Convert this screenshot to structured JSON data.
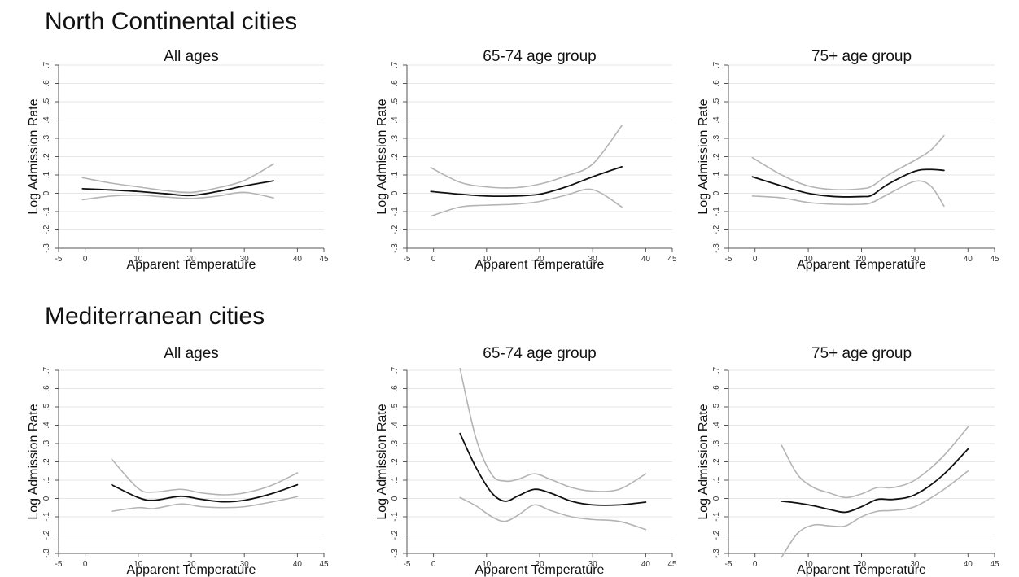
{
  "groups": [
    {
      "title": "North Continental cities"
    },
    {
      "title": "Mediterranean cities"
    }
  ],
  "styles": {
    "estimate_color": "#111111",
    "ci_color": "#b4b4b4",
    "grid_color": "#e6e6e6",
    "axis_color": "#555555"
  },
  "chart_data": [
    {
      "type": "line",
      "group": "North Continental cities",
      "title": "All ages",
      "xlabel": "Apparent Temperature",
      "ylabel": "Log Admission Rate",
      "xlim": [
        -5,
        45
      ],
      "ylim": [
        -0.3,
        0.7
      ],
      "xticks": [
        -5,
        0,
        10,
        20,
        30,
        40,
        45
      ],
      "yticks": [
        -0.3,
        -0.2,
        -0.1,
        0,
        0.1,
        0.2,
        0.3,
        0.4,
        0.5,
        0.6,
        0.7
      ],
      "ytick_labels": [
        "-.3",
        "-.2",
        "-.1",
        "0",
        ".1",
        ".2",
        ".3",
        ".4",
        ".5",
        ".6",
        ".7"
      ],
      "grid": "horizontal",
      "x": [
        -0.5,
        5,
        10,
        15,
        20,
        25,
        30,
        35.5
      ],
      "series": [
        {
          "role": "estimate",
          "values": [
            0.025,
            0.018,
            0.01,
            -0.002,
            -0.012,
            0.01,
            0.04,
            0.068
          ]
        },
        {
          "role": "upper",
          "values": [
            0.085,
            0.055,
            0.035,
            0.015,
            0.005,
            0.03,
            0.07,
            0.16
          ]
        },
        {
          "role": "lower",
          "values": [
            -0.035,
            -0.015,
            -0.01,
            -0.02,
            -0.028,
            -0.015,
            0.005,
            -0.025
          ]
        }
      ]
    },
    {
      "type": "line",
      "group": "North Continental cities",
      "title": "65-74 age group",
      "xlabel": "Apparent Temperature",
      "ylabel": "Log Admission Rate",
      "xlim": [
        -5,
        45
      ],
      "ylim": [
        -0.3,
        0.7
      ],
      "xticks": [
        -5,
        0,
        10,
        20,
        30,
        40,
        45
      ],
      "yticks": [
        -0.3,
        -0.2,
        -0.1,
        0,
        0.1,
        0.2,
        0.3,
        0.4,
        0.5,
        0.6,
        0.7
      ],
      "ytick_labels": [
        "-.3",
        "-.2",
        "-.1",
        "0",
        ".1",
        ".2",
        ".3",
        ".4",
        ".5",
        ".6",
        ".7"
      ],
      "grid": "horizontal",
      "x": [
        -0.5,
        5,
        10,
        15,
        20,
        25,
        30,
        35.5
      ],
      "series": [
        {
          "role": "estimate",
          "values": [
            0.01,
            -0.005,
            -0.015,
            -0.015,
            -0.005,
            0.035,
            0.09,
            0.145
          ]
        },
        {
          "role": "upper",
          "values": [
            0.14,
            0.06,
            0.035,
            0.03,
            0.05,
            0.095,
            0.16,
            0.37
          ]
        },
        {
          "role": "lower",
          "values": [
            -0.125,
            -0.075,
            -0.065,
            -0.06,
            -0.045,
            -0.01,
            0.02,
            -0.075
          ]
        }
      ]
    },
    {
      "type": "line",
      "group": "North Continental cities",
      "title": "75+ age group",
      "xlabel": "Apparent Temperature",
      "ylabel": "Log Admission Rate",
      "xlim": [
        -5,
        45
      ],
      "ylim": [
        -0.3,
        0.7
      ],
      "xticks": [
        -5,
        0,
        10,
        20,
        30,
        40,
        45
      ],
      "yticks": [
        -0.3,
        -0.2,
        -0.1,
        0,
        0.1,
        0.2,
        0.3,
        0.4,
        0.5,
        0.6,
        0.7
      ],
      "ytick_labels": [
        "-.3",
        "-.2",
        "-.1",
        "0",
        ".1",
        ".2",
        ".3",
        ".4",
        ".5",
        ".6",
        ".7"
      ],
      "grid": "horizontal",
      "x": [
        -0.5,
        5,
        10,
        15,
        20,
        22,
        25,
        30,
        33,
        35.5
      ],
      "series": [
        {
          "role": "estimate",
          "values": [
            0.09,
            0.04,
            0.0,
            -0.018,
            -0.018,
            -0.01,
            0.05,
            0.12,
            0.13,
            0.125
          ]
        },
        {
          "role": "upper",
          "values": [
            0.195,
            0.1,
            0.04,
            0.02,
            0.025,
            0.04,
            0.1,
            0.18,
            0.235,
            0.315
          ]
        },
        {
          "role": "lower",
          "values": [
            -0.015,
            -0.025,
            -0.05,
            -0.06,
            -0.06,
            -0.05,
            -0.005,
            0.065,
            0.04,
            -0.07
          ]
        }
      ]
    },
    {
      "type": "line",
      "group": "Mediterranean cities",
      "title": "All ages",
      "xlabel": "Apparent Temperature",
      "ylabel": "Log Admission Rate",
      "xlim": [
        -5,
        45
      ],
      "ylim": [
        -0.3,
        0.7
      ],
      "xticks": [
        -5,
        0,
        10,
        20,
        30,
        40,
        45
      ],
      "yticks": [
        -0.3,
        -0.2,
        -0.1,
        0,
        0.1,
        0.2,
        0.3,
        0.4,
        0.5,
        0.6,
        0.7
      ],
      "ytick_labels": [
        "-.3",
        "-.2",
        "-.1",
        "0",
        ".1",
        ".2",
        ".3",
        ".4",
        ".5",
        ".6",
        ".7"
      ],
      "grid": "horizontal",
      "x": [
        5,
        10,
        13,
        18,
        22,
        26,
        30,
        35,
        40
      ],
      "series": [
        {
          "role": "estimate",
          "values": [
            0.075,
            0.005,
            -0.01,
            0.012,
            -0.005,
            -0.018,
            -0.01,
            0.025,
            0.075
          ]
        },
        {
          "role": "upper",
          "values": [
            0.215,
            0.055,
            0.035,
            0.05,
            0.03,
            0.02,
            0.03,
            0.07,
            0.14
          ]
        },
        {
          "role": "lower",
          "values": [
            -0.07,
            -0.05,
            -0.055,
            -0.03,
            -0.045,
            -0.05,
            -0.045,
            -0.02,
            0.01
          ]
        }
      ]
    },
    {
      "type": "line",
      "group": "Mediterranean cities",
      "title": "65-74 age group",
      "xlabel": "Apparent Temperature",
      "ylabel": "Log Admission Rate",
      "xlim": [
        -5,
        45
      ],
      "ylim": [
        -0.3,
        0.7
      ],
      "xticks": [
        -5,
        0,
        10,
        20,
        30,
        40,
        45
      ],
      "yticks": [
        -0.3,
        -0.2,
        -0.1,
        0,
        0.1,
        0.2,
        0.3,
        0.4,
        0.5,
        0.6,
        0.7
      ],
      "ytick_labels": [
        "-.3",
        "-.2",
        "-.1",
        "0",
        ".1",
        ".2",
        ".3",
        ".4",
        ".5",
        ".6",
        ".7"
      ],
      "grid": "horizontal",
      "x": [
        5,
        8,
        11,
        13.5,
        16,
        19,
        22,
        26,
        30,
        35,
        40
      ],
      "series": [
        {
          "role": "estimate",
          "values": [
            0.355,
            0.17,
            0.03,
            -0.015,
            0.015,
            0.05,
            0.03,
            -0.015,
            -0.035,
            -0.035,
            -0.02
          ]
        },
        {
          "role": "upper",
          "values": [
            0.71,
            0.33,
            0.13,
            0.095,
            0.105,
            0.135,
            0.105,
            0.06,
            0.04,
            0.05,
            0.135
          ]
        },
        {
          "role": "lower",
          "values": [
            0.005,
            -0.04,
            -0.1,
            -0.125,
            -0.09,
            -0.035,
            -0.065,
            -0.1,
            -0.115,
            -0.125,
            -0.17
          ]
        }
      ]
    },
    {
      "type": "line",
      "group": "Mediterranean cities",
      "title": "75+ age group",
      "xlabel": "Apparent Temperature",
      "ylabel": "Log Admission Rate",
      "xlim": [
        -5,
        45
      ],
      "ylim": [
        -0.3,
        0.7
      ],
      "xticks": [
        -5,
        0,
        10,
        20,
        30,
        40,
        45
      ],
      "yticks": [
        -0.3,
        -0.2,
        -0.1,
        0,
        0.1,
        0.2,
        0.3,
        0.4,
        0.5,
        0.6,
        0.7
      ],
      "ytick_labels": [
        "-.3",
        "-.2",
        "-.1",
        "0",
        ".1",
        ".2",
        ".3",
        ".4",
        ".5",
        ".6",
        ".7"
      ],
      "grid": "horizontal",
      "x": [
        5,
        8,
        11,
        14,
        17,
        20,
        23,
        26,
        30,
        35,
        40
      ],
      "series": [
        {
          "role": "estimate",
          "values": [
            -0.015,
            -0.025,
            -0.04,
            -0.06,
            -0.075,
            -0.045,
            -0.005,
            -0.005,
            0.02,
            0.12,
            0.27
          ]
        },
        {
          "role": "upper",
          "values": [
            0.29,
            0.13,
            0.06,
            0.03,
            0.005,
            0.025,
            0.06,
            0.06,
            0.1,
            0.22,
            0.39
          ]
        },
        {
          "role": "lower",
          "values": [
            -0.32,
            -0.19,
            -0.145,
            -0.15,
            -0.15,
            -0.1,
            -0.07,
            -0.065,
            -0.045,
            0.04,
            0.15
          ]
        }
      ]
    }
  ]
}
